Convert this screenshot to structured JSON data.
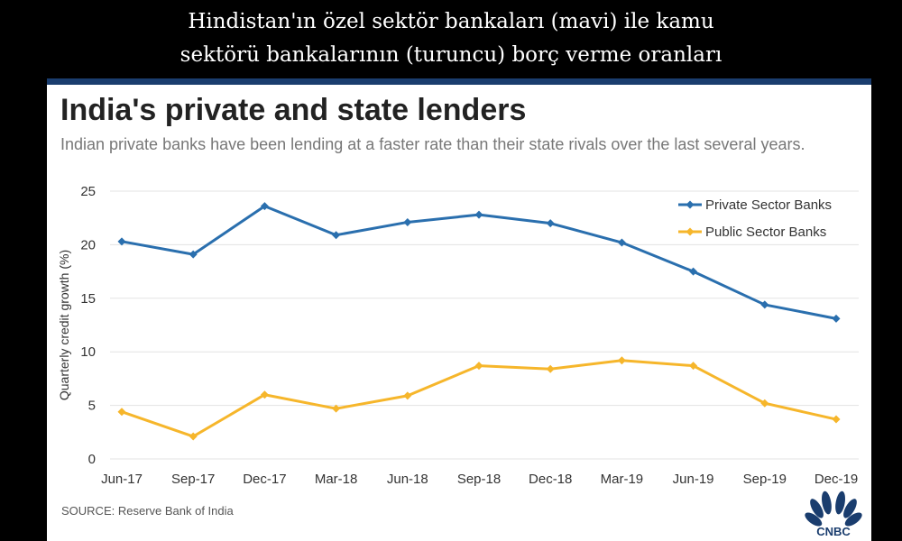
{
  "caption": {
    "line1": "Hindistan'ın özel sektör bankaları (mavi) ile kamu",
    "line2": "sektörü bankalarının (turuncu) borç verme oranları"
  },
  "title": "India's private and state lenders",
  "subtitle": "Indian private banks have been lending at a faster rate than their state rivals over the last several years.",
  "source": "SOURCE: Reserve Bank of India",
  "logo_text": "CNBC",
  "colors": {
    "private": "#2a6fae",
    "public": "#f6b62b",
    "bar": "#1a3d6e",
    "grid": "#e3e3e3"
  },
  "chart_data": {
    "type": "line",
    "categories": [
      "Jun-17",
      "Sep-17",
      "Dec-17",
      "Mar-18",
      "Jun-18",
      "Sep-18",
      "Dec-18",
      "Mar-19",
      "Jun-19",
      "Sep-19",
      "Dec-19"
    ],
    "series": [
      {
        "name": "Private Sector Banks",
        "values": [
          20.3,
          19.1,
          23.6,
          20.9,
          22.1,
          22.8,
          22.0,
          20.2,
          17.5,
          14.4,
          13.1
        ]
      },
      {
        "name": "Public Sector Banks",
        "values": [
          4.4,
          2.1,
          6.0,
          4.7,
          5.9,
          8.7,
          8.4,
          9.2,
          8.7,
          5.2,
          3.7
        ]
      }
    ],
    "ylabel": "Quarterly credit growth (%)",
    "ylim": [
      0,
      25
    ],
    "yticks": [
      0,
      5,
      10,
      15,
      20,
      25
    ],
    "grid": true,
    "legend": "top-right"
  }
}
